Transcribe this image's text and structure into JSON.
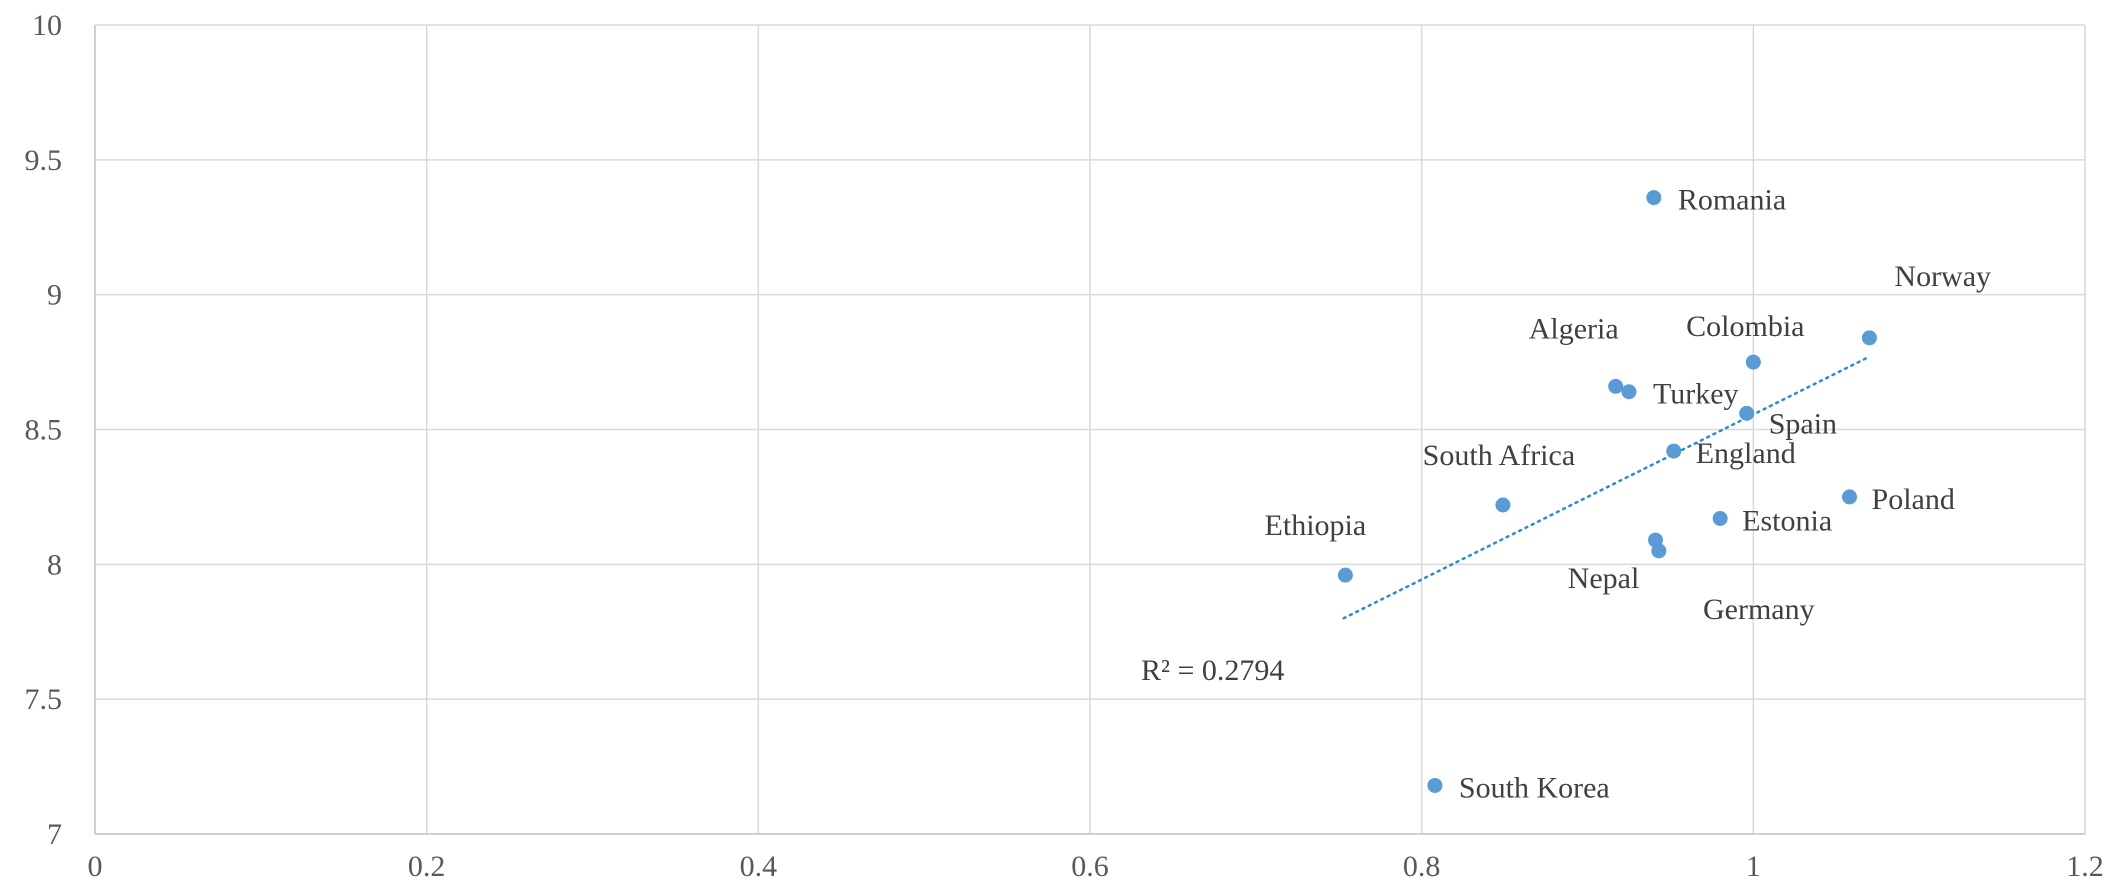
{
  "chart_data": {
    "type": "scatter",
    "title": "",
    "xlabel": "",
    "ylabel": "",
    "xlim": [
      0,
      1.2
    ],
    "ylim": [
      7,
      10
    ],
    "x_ticks": [
      "0",
      "0.2",
      "0.4",
      "0.6",
      "0.8",
      "1",
      "1.2"
    ],
    "y_ticks": [
      "7",
      "7.5",
      "8",
      "8.5",
      "9",
      "9.5",
      "10"
    ],
    "grid": true,
    "marker_color": "#5b9bd5",
    "trendline_color": "#2e8bd0",
    "points": [
      {
        "label": "Romania",
        "x": 0.94,
        "y": 9.36
      },
      {
        "label": "Norway",
        "x": 1.07,
        "y": 8.84
      },
      {
        "label": "Colombia",
        "x": 1.0,
        "y": 8.75
      },
      {
        "label": "Algeria",
        "x": 0.917,
        "y": 8.66
      },
      {
        "label": "Turkey",
        "x": 0.925,
        "y": 8.64
      },
      {
        "label": "Spain",
        "x": 0.996,
        "y": 8.56
      },
      {
        "label": "England",
        "x": 0.952,
        "y": 8.42
      },
      {
        "label": "South Africa",
        "x": 0.849,
        "y": 8.22
      },
      {
        "label": "Poland",
        "x": 1.058,
        "y": 8.25
      },
      {
        "label": "Estonia",
        "x": 0.98,
        "y": 8.17
      },
      {
        "label": "Nepal",
        "x": 0.941,
        "y": 8.09
      },
      {
        "label": "Germany",
        "x": 0.943,
        "y": 8.05
      },
      {
        "label": "Ethiopia",
        "x": 0.754,
        "y": 7.96
      },
      {
        "label": "South Korea",
        "x": 0.808,
        "y": 7.18
      }
    ],
    "trendline": {
      "type": "linear",
      "x": [
        0.753,
        1.07
      ],
      "y": [
        7.8,
        8.77
      ],
      "r2_label": "R² = 0.2794"
    }
  }
}
